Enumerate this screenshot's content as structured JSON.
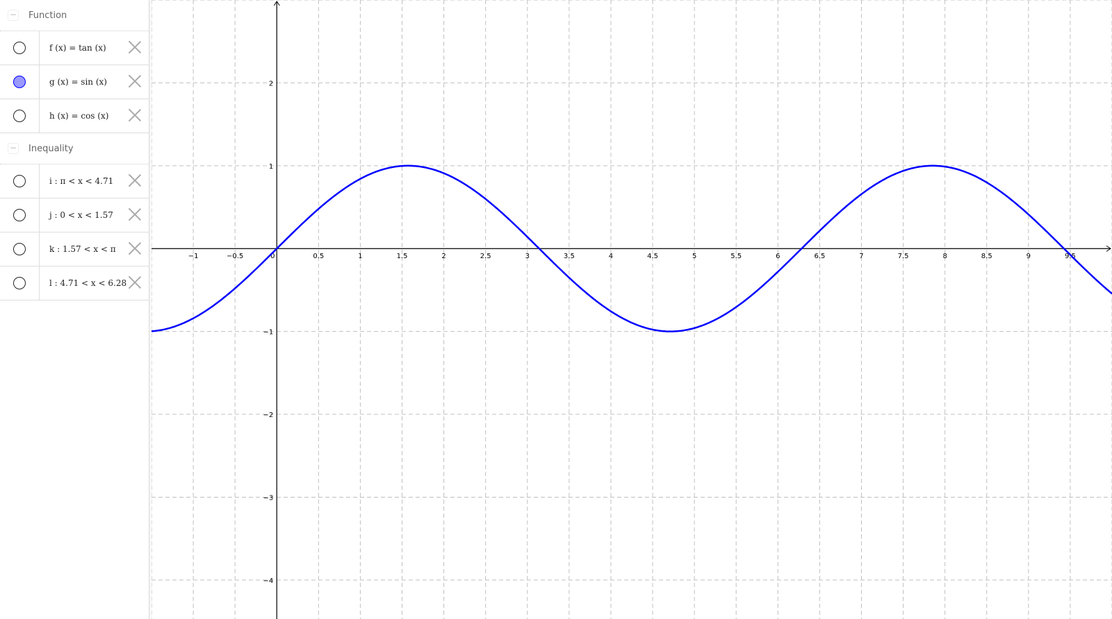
{
  "sidebar": {
    "groups": [
      {
        "title": "Function",
        "items": [
          {
            "label": "f (x)  =  tan (x)",
            "visible": false
          },
          {
            "label": "g (x)  =  sin (x)",
            "visible": true
          },
          {
            "label": "h (x)  =  cos (x)",
            "visible": false
          }
        ]
      },
      {
        "title": "Inequality",
        "items": [
          {
            "label": "i :  π < x < 4.71",
            "visible": false
          },
          {
            "label": "j :  0 < x < 1.57",
            "visible": false
          },
          {
            "label": "k :  1.57 < x < π",
            "visible": false
          },
          {
            "label": "l :  4.71 < x < 6.28",
            "visible": false
          }
        ]
      }
    ]
  },
  "graph": {
    "x_ticks": [
      "−1",
      "−0.5",
      "0",
      "0.5",
      "1",
      "1.5",
      "2",
      "2.5",
      "3",
      "3.5",
      "4",
      "4.5",
      "5",
      "5.5",
      "6",
      "6.5",
      "7",
      "7.5",
      "8",
      "8.5",
      "9",
      "9.5"
    ],
    "y_ticks": [
      "2",
      "1",
      "−1",
      "−2",
      "−3",
      "−4"
    ],
    "curve_color": "#0000ff",
    "grid": "dashed",
    "xlim": [
      -1.5,
      10
    ],
    "ylim": [
      -4.47,
      3
    ],
    "plotted_function": "sin(x)"
  }
}
